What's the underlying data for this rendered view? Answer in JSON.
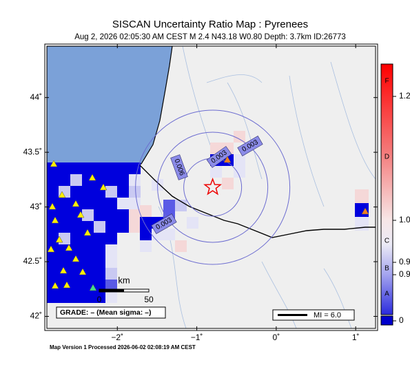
{
  "title": "SISCAN Uncertainty Ratio Map : Pyrenees",
  "subtitle": "Aug  2, 2026 02:05:30 AM CEST   M 2.4   N43.18 W0.80   Depth: 3.7km   ID:26773",
  "map": {
    "lonlim": [
      -2.887,
      1.25
    ],
    "latlim": [
      41.89,
      44.47
    ],
    "lonticks": [
      {
        "value": -2,
        "label": "−2˚"
      },
      {
        "value": -1,
        "label": "−1˚"
      },
      {
        "value": 0,
        "label": "0˚"
      },
      {
        "value": 1,
        "label": "1˚"
      }
    ],
    "latticks": [
      {
        "value": 44,
        "label": "44˚"
      },
      {
        "value": 43.5,
        "label": "43.5˚"
      },
      {
        "value": 43,
        "label": "43˚"
      },
      {
        "value": 42.5,
        "label": "42.5˚"
      },
      {
        "value": 42,
        "label": "42˚"
      }
    ],
    "epicenter": {
      "lat": 43.18,
      "lon": -0.8
    },
    "contour_labels": [
      "0.003",
      "0.003",
      "0.006",
      "0.003"
    ]
  },
  "scale_bar": {
    "unit": "km",
    "labels": [
      "0",
      "50"
    ]
  },
  "grade": "GRADE: – (Mean sigma: –)",
  "mi_legend": "MI = 6.0",
  "colorbar": {
    "grades": [
      "F",
      "D",
      "C",
      "B",
      "A"
    ],
    "values": [
      "1.2",
      "1.0",
      "0.9",
      "0.9",
      "0"
    ]
  },
  "footer": "Map Version 1 Processed 2026-06-02 02:08:19 AM CEST"
}
